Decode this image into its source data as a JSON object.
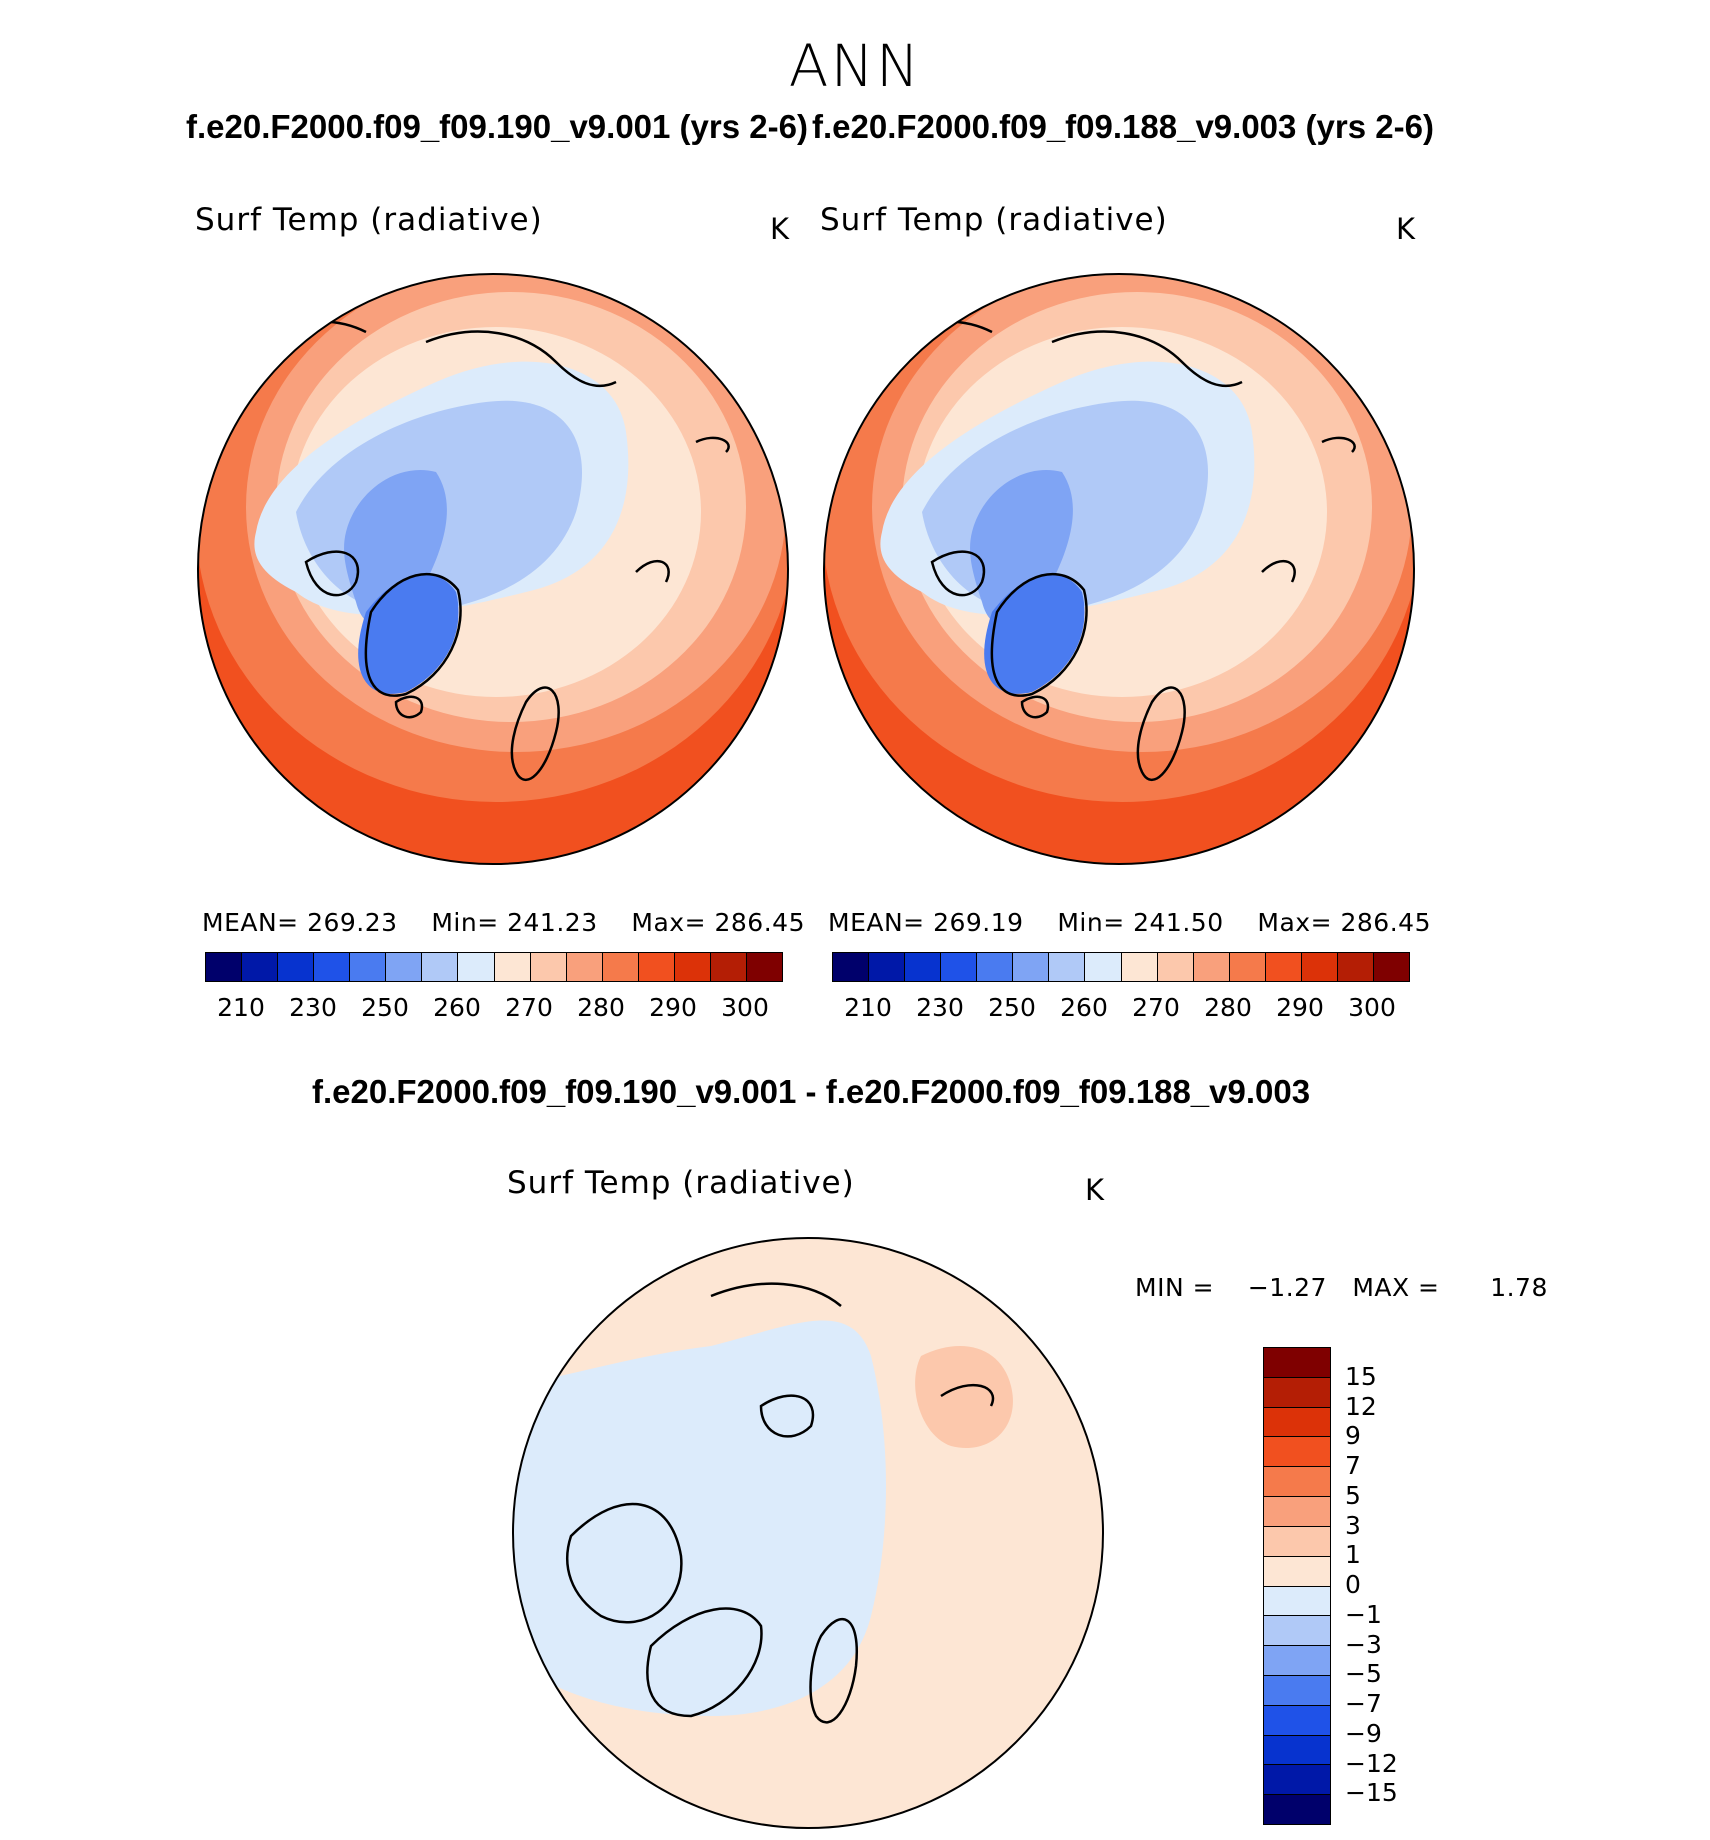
{
  "main_title": "ANN",
  "case_titles": {
    "left": "f.e20.F2000.f09_f09.190_v9.001 (yrs 2-6)",
    "right": "f.e20.F2000.f09_f09.188_v9.003 (yrs 2-6)"
  },
  "diff_title": "f.e20.F2000.f09_f09.190_v9.001 - f.e20.F2000.f09_f09.188_v9.003",
  "panels": [
    {
      "variable": "Surf Temp (radiative)",
      "units": "K",
      "stats": {
        "mean_label": "MEAN=",
        "mean": "269.23",
        "min_label": "Min=",
        "min": "241.23",
        "max_label": "Max=",
        "max": "286.45"
      }
    },
    {
      "variable": "Surf Temp (radiative)",
      "units": "K",
      "stats": {
        "mean_label": "MEAN=",
        "mean": "269.19",
        "min_label": "Min=",
        "min": "241.50",
        "max_label": "Max=",
        "max": "286.45"
      }
    }
  ],
  "diff_panel": {
    "variable": "Surf Temp (radiative)",
    "units": "K",
    "stats": {
      "min_label": "MIN =",
      "min": "−1.27",
      "max_label": "MAX =",
      "max": "1.78"
    }
  },
  "abs_colorbar": {
    "colors": [
      "#00006b",
      "#0018a8",
      "#0733cf",
      "#1f52e8",
      "#4a7bf0",
      "#7fa4f4",
      "#b0c9f7",
      "#dcebfb",
      "#fde6d4",
      "#fcc8ac",
      "#f9a07c",
      "#f57a4b",
      "#f1501f",
      "#dc3208",
      "#b41e05",
      "#7f0000"
    ],
    "tick_labels": [
      "210",
      "230",
      "250",
      "260",
      "270",
      "280",
      "290",
      "300"
    ]
  },
  "diff_colorbar": {
    "colors_top_to_bottom": [
      "#7f0000",
      "#b41e05",
      "#dc3208",
      "#f1501f",
      "#f57a4b",
      "#f9a07c",
      "#fcc8ac",
      "#fde6d4",
      "#dcebfb",
      "#b0c9f7",
      "#7fa4f4",
      "#4a7bf0",
      "#1f52e8",
      "#0733cf",
      "#0018a8",
      "#00006b"
    ],
    "tick_labels_top_to_bottom": [
      "15",
      "12",
      "9",
      "7",
      "5",
      "3",
      "1",
      "0",
      "−1",
      "−3",
      "−5",
      "−7",
      "−9",
      "−12",
      "−15"
    ]
  },
  "map_colors": {
    "warm_dark": "#f1501f",
    "warm_mid": "#f57a4b",
    "warm": "#f9a07c",
    "warm_light": "#fcc8ac",
    "neutral_warm": "#fde6d4",
    "neutral_cool": "#dcebfb",
    "cool_light": "#b0c9f7",
    "cool": "#7fa4f4",
    "cool_dark": "#4a7bf0",
    "coast": "#000000"
  }
}
